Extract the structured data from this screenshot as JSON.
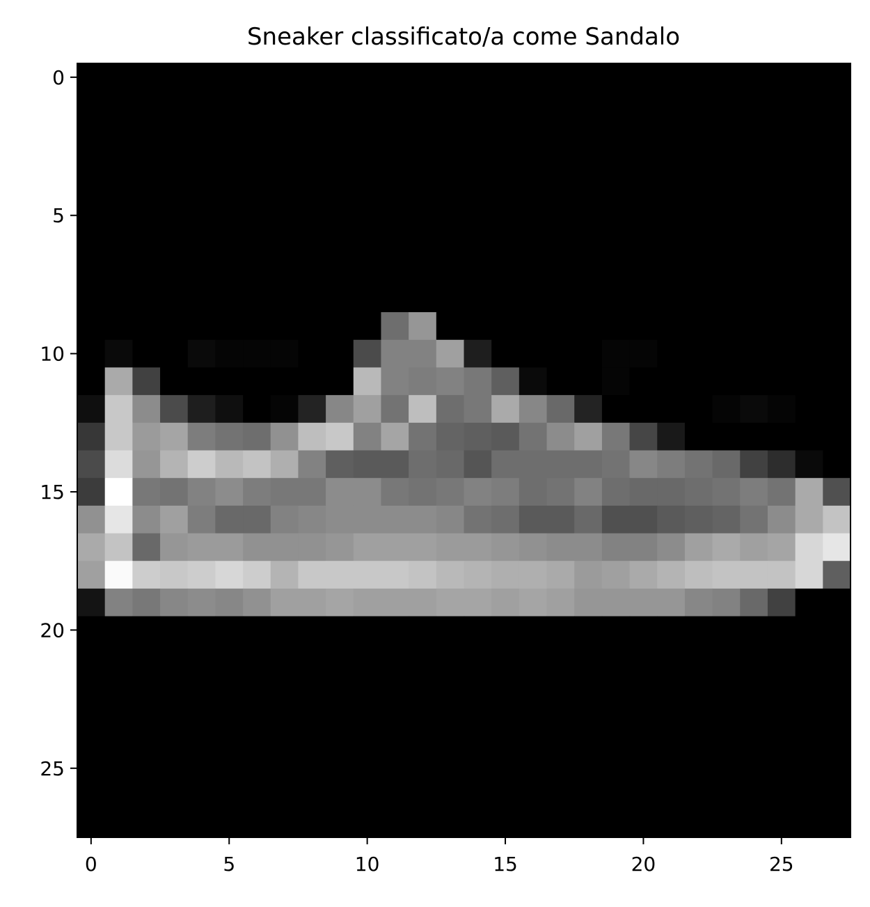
{
  "chart_data": {
    "type": "heatmap",
    "title": "Sneaker classificato/a come Sandalo",
    "xlabel": "",
    "ylabel": "",
    "colormap": "gray",
    "value_range": [
      0,
      255
    ],
    "grid": false,
    "xlim": [
      -0.5,
      27.5
    ],
    "ylim": [
      27.5,
      -0.5
    ],
    "x_ticks": [
      0,
      5,
      10,
      15,
      20,
      25
    ],
    "y_ticks": [
      0,
      5,
      10,
      15,
      20,
      25
    ],
    "x_tick_labels": [
      "0",
      "5",
      "10",
      "15",
      "20",
      "25"
    ],
    "y_tick_labels": [
      "0",
      "5",
      "10",
      "15",
      "20",
      "25"
    ],
    "rows": [
      [
        0,
        0,
        0,
        0,
        0,
        0,
        0,
        0,
        0,
        0,
        0,
        0,
        0,
        0,
        0,
        0,
        0,
        0,
        0,
        0,
        0,
        0,
        0,
        0,
        0,
        0,
        0,
        0
      ],
      [
        0,
        0,
        0,
        0,
        0,
        0,
        0,
        0,
        0,
        0,
        0,
        0,
        0,
        0,
        0,
        0,
        0,
        0,
        0,
        0,
        0,
        0,
        0,
        0,
        0,
        0,
        0,
        0
      ],
      [
        0,
        0,
        0,
        0,
        0,
        0,
        0,
        0,
        0,
        0,
        0,
        0,
        0,
        0,
        0,
        0,
        0,
        0,
        0,
        0,
        0,
        0,
        0,
        0,
        0,
        0,
        0,
        0
      ],
      [
        0,
        0,
        0,
        0,
        0,
        0,
        0,
        0,
        0,
        0,
        0,
        0,
        0,
        0,
        0,
        0,
        0,
        0,
        0,
        0,
        0,
        0,
        0,
        0,
        0,
        0,
        0,
        0
      ],
      [
        0,
        0,
        0,
        0,
        0,
        0,
        0,
        0,
        0,
        0,
        0,
        0,
        0,
        0,
        0,
        0,
        0,
        0,
        0,
        0,
        0,
        0,
        0,
        0,
        0,
        0,
        0,
        0
      ],
      [
        0,
        0,
        0,
        0,
        0,
        0,
        0,
        0,
        0,
        0,
        0,
        0,
        0,
        0,
        0,
        0,
        0,
        0,
        0,
        0,
        0,
        0,
        0,
        0,
        0,
        0,
        0,
        0
      ],
      [
        0,
        0,
        0,
        0,
        0,
        0,
        0,
        0,
        0,
        0,
        0,
        0,
        0,
        0,
        0,
        0,
        0,
        0,
        0,
        0,
        0,
        0,
        0,
        0,
        0,
        0,
        0,
        0
      ],
      [
        0,
        0,
        0,
        0,
        0,
        0,
        0,
        0,
        0,
        0,
        0,
        0,
        0,
        0,
        0,
        0,
        0,
        0,
        0,
        0,
        0,
        0,
        0,
        0,
        0,
        0,
        0,
        0
      ],
      [
        0,
        0,
        0,
        0,
        0,
        0,
        0,
        0,
        0,
        0,
        0,
        0,
        0,
        0,
        0,
        0,
        0,
        0,
        0,
        0,
        0,
        0,
        0,
        0,
        0,
        0,
        0,
        0
      ],
      [
        0,
        0,
        0,
        0,
        0,
        0,
        0,
        0,
        0,
        0,
        0,
        110,
        150,
        0,
        0,
        0,
        0,
        0,
        0,
        0,
        0,
        0,
        0,
        0,
        0,
        0,
        0,
        0
      ],
      [
        0,
        10,
        0,
        0,
        10,
        5,
        5,
        5,
        0,
        0,
        75,
        130,
        130,
        160,
        30,
        0,
        0,
        0,
        0,
        5,
        5,
        0,
        0,
        0,
        0,
        0,
        0,
        0
      ],
      [
        0,
        170,
        65,
        0,
        0,
        0,
        0,
        0,
        0,
        0,
        185,
        130,
        125,
        130,
        120,
        95,
        10,
        0,
        0,
        5,
        0,
        0,
        0,
        0,
        0,
        0,
        0,
        0
      ],
      [
        15,
        200,
        140,
        75,
        30,
        15,
        0,
        5,
        35,
        135,
        160,
        115,
        190,
        110,
        120,
        170,
        135,
        105,
        35,
        0,
        0,
        0,
        0,
        5,
        10,
        5,
        0,
        0
      ],
      [
        55,
        200,
        155,
        165,
        125,
        115,
        110,
        145,
        190,
        200,
        130,
        165,
        115,
        100,
        95,
        90,
        115,
        140,
        160,
        120,
        70,
        25,
        0,
        0,
        0,
        0,
        0,
        0
      ],
      [
        75,
        220,
        150,
        180,
        205,
        185,
        195,
        175,
        130,
        95,
        90,
        90,
        110,
        105,
        85,
        110,
        110,
        110,
        110,
        115,
        135,
        125,
        115,
        105,
        65,
        45,
        10,
        0
      ],
      [
        60,
        255,
        120,
        115,
        130,
        140,
        125,
        120,
        120,
        140,
        140,
        120,
        115,
        120,
        130,
        125,
        110,
        115,
        130,
        110,
        105,
        105,
        110,
        115,
        125,
        115,
        170,
        80
      ],
      [
        145,
        230,
        140,
        160,
        125,
        105,
        105,
        130,
        135,
        140,
        140,
        140,
        140,
        135,
        115,
        110,
        90,
        90,
        105,
        80,
        80,
        90,
        95,
        100,
        115,
        140,
        170,
        195
      ],
      [
        170,
        195,
        105,
        150,
        155,
        155,
        145,
        145,
        145,
        150,
        160,
        160,
        160,
        155,
        155,
        150,
        145,
        140,
        140,
        130,
        130,
        140,
        160,
        170,
        160,
        165,
        215,
        230
      ],
      [
        160,
        250,
        205,
        200,
        205,
        215,
        205,
        180,
        200,
        200,
        200,
        200,
        195,
        185,
        180,
        175,
        175,
        170,
        155,
        160,
        170,
        180,
        190,
        195,
        195,
        195,
        215,
        95
      ],
      [
        20,
        130,
        120,
        135,
        140,
        135,
        145,
        160,
        160,
        165,
        160,
        160,
        160,
        165,
        165,
        160,
        165,
        160,
        150,
        150,
        150,
        150,
        135,
        130,
        105,
        65,
        0,
        0
      ],
      [
        0,
        0,
        0,
        0,
        0,
        0,
        0,
        0,
        0,
        0,
        0,
        0,
        0,
        0,
        0,
        0,
        0,
        0,
        0,
        0,
        0,
        0,
        0,
        0,
        0,
        0,
        0,
        0
      ],
      [
        0,
        0,
        0,
        0,
        0,
        0,
        0,
        0,
        0,
        0,
        0,
        0,
        0,
        0,
        0,
        0,
        0,
        0,
        0,
        0,
        0,
        0,
        0,
        0,
        0,
        0,
        0,
        0
      ],
      [
        0,
        0,
        0,
        0,
        0,
        0,
        0,
        0,
        0,
        0,
        0,
        0,
        0,
        0,
        0,
        0,
        0,
        0,
        0,
        0,
        0,
        0,
        0,
        0,
        0,
        0,
        0,
        0
      ],
      [
        0,
        0,
        0,
        0,
        0,
        0,
        0,
        0,
        0,
        0,
        0,
        0,
        0,
        0,
        0,
        0,
        0,
        0,
        0,
        0,
        0,
        0,
        0,
        0,
        0,
        0,
        0,
        0
      ],
      [
        0,
        0,
        0,
        0,
        0,
        0,
        0,
        0,
        0,
        0,
        0,
        0,
        0,
        0,
        0,
        0,
        0,
        0,
        0,
        0,
        0,
        0,
        0,
        0,
        0,
        0,
        0,
        0
      ],
      [
        0,
        0,
        0,
        0,
        0,
        0,
        0,
        0,
        0,
        0,
        0,
        0,
        0,
        0,
        0,
        0,
        0,
        0,
        0,
        0,
        0,
        0,
        0,
        0,
        0,
        0,
        0,
        0
      ],
      [
        0,
        0,
        0,
        0,
        0,
        0,
        0,
        0,
        0,
        0,
        0,
        0,
        0,
        0,
        0,
        0,
        0,
        0,
        0,
        0,
        0,
        0,
        0,
        0,
        0,
        0,
        0,
        0
      ],
      [
        0,
        0,
        0,
        0,
        0,
        0,
        0,
        0,
        0,
        0,
        0,
        0,
        0,
        0,
        0,
        0,
        0,
        0,
        0,
        0,
        0,
        0,
        0,
        0,
        0,
        0,
        0,
        0
      ]
    ]
  }
}
